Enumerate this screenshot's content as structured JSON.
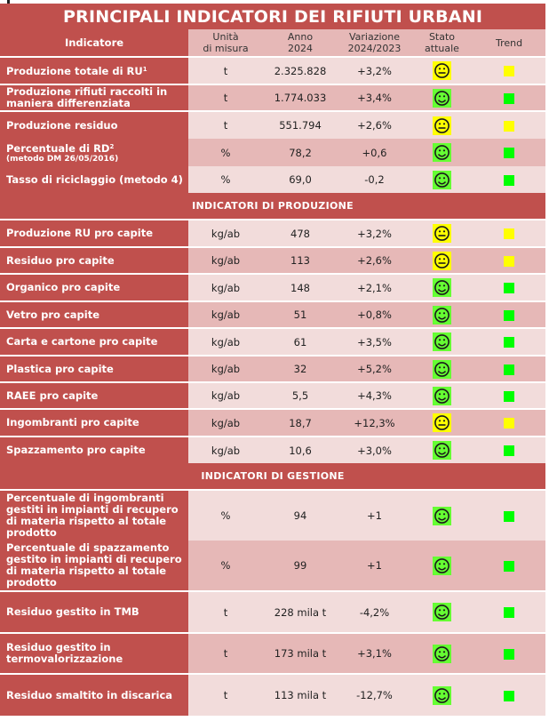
{
  "title": "PRINCIPALI INDICATORI DEI RIFIUTI URBANI",
  "columns": {
    "indicatore": "Indicatore",
    "unita_line1": "Unità",
    "unita_line2": "di misura",
    "anno_line1": "Anno",
    "anno_line2": "2024",
    "variazione_line1": "Variazione",
    "variazione_line2": "2024/2023",
    "stato_line1": "Stato",
    "stato_line2": "attuale",
    "trend": "Trend"
  },
  "colors": {
    "header_red": "#c0504d",
    "row_light": "#f2dcdb",
    "row_dark": "#e6b8b7",
    "status_green": "#66ff33",
    "status_yellow": "#ffff00",
    "trend_green": "#00ff00",
    "trend_yellow": "#ffff00"
  },
  "sections": {
    "main": {
      "rows": [
        {
          "label": "Produzione totale di RU",
          "sup": "1",
          "unit": "t",
          "value": "2.325.828",
          "change": "+3,2%",
          "status": "neutral",
          "trend": "yellow"
        },
        {
          "label": "Produzione rifiuti raccolti in maniera differenziata",
          "unit": "t",
          "value": "1.774.033",
          "change": "+3,4%",
          "status": "happy",
          "trend": "green"
        },
        {
          "label": "Produzione residuo",
          "unit": "t",
          "value": "551.794",
          "change": "+2,6%",
          "status": "neutral",
          "trend": "yellow"
        },
        {
          "label": "Percentuale di RD",
          "sup": "2",
          "note": "(metodo DM 26/05/2016)",
          "unit": "%",
          "value": "78,2",
          "change": "+0,6",
          "status": "happy",
          "trend": "green"
        },
        {
          "label": "Tasso di riciclaggio (metodo 4)",
          "unit": "%",
          "value": "69,0",
          "change": "-0,2",
          "status": "happy",
          "trend": "green"
        }
      ]
    },
    "produzione": {
      "title": "INDICATORI DI PRODUZIONE",
      "rows": [
        {
          "label": "Produzione RU pro capite",
          "unit": "kg/ab",
          "value": "478",
          "change": "+3,2%",
          "status": "neutral",
          "trend": "yellow"
        },
        {
          "label": "Residuo pro capite",
          "unit": "kg/ab",
          "value": "113",
          "change": "+2,6%",
          "status": "neutral",
          "trend": "yellow"
        },
        {
          "label": "Organico pro capite",
          "unit": "kg/ab",
          "value": "148",
          "change": "+2,1%",
          "status": "happy",
          "trend": "green"
        },
        {
          "label": "Vetro pro capite",
          "unit": "kg/ab",
          "value": "51",
          "change": "+0,8%",
          "status": "happy",
          "trend": "green"
        },
        {
          "label": "Carta e cartone pro capite",
          "unit": "kg/ab",
          "value": "61",
          "change": "+3,5%",
          "status": "happy",
          "trend": "green"
        },
        {
          "label": "Plastica pro capite",
          "unit": "kg/ab",
          "value": "32",
          "change": "+5,2%",
          "status": "happy",
          "trend": "green"
        },
        {
          "label": "RAEE pro capite",
          "unit": "kg/ab",
          "value": "5,5",
          "change": "+4,3%",
          "status": "happy",
          "trend": "green"
        },
        {
          "label": "Ingombranti pro capite",
          "unit": "kg/ab",
          "value": "18,7",
          "change": "+12,3%",
          "status": "neutral",
          "trend": "yellow"
        },
        {
          "label": "Spazzamento pro capite",
          "unit": "kg/ab",
          "value": "10,6",
          "change": "+3,0%",
          "status": "happy",
          "trend": "green"
        }
      ]
    },
    "gestione": {
      "title": "INDICATORI DI GESTIONE",
      "rows": [
        {
          "label": "Percentuale di ingombranti gestiti in impianti di recupero di materia rispetto al totale prodotto",
          "unit": "%",
          "value": "94",
          "change": "+1",
          "status": "happy",
          "trend": "green"
        },
        {
          "label": "Percentuale di spazzamento gestito in impianti di recupero di materia rispetto al totale prodotto",
          "unit": "%",
          "value": "99",
          "change": "+1",
          "status": "happy",
          "trend": "green"
        },
        {
          "label": "Residuo gestito in TMB",
          "unit": "t",
          "value": "228 mila t",
          "change": "-4,2%",
          "status": "happy",
          "trend": "green"
        },
        {
          "label": "Residuo gestito in termovalorizzazione",
          "unit": "t",
          "value": "173 mila t",
          "change": "+3,1%",
          "status": "happy",
          "trend": "green"
        },
        {
          "label": "Residuo smaltito in discarica",
          "unit": "t",
          "value": "113 mila t",
          "change": "-12,7%",
          "status": "happy",
          "trend": "green"
        }
      ]
    }
  }
}
